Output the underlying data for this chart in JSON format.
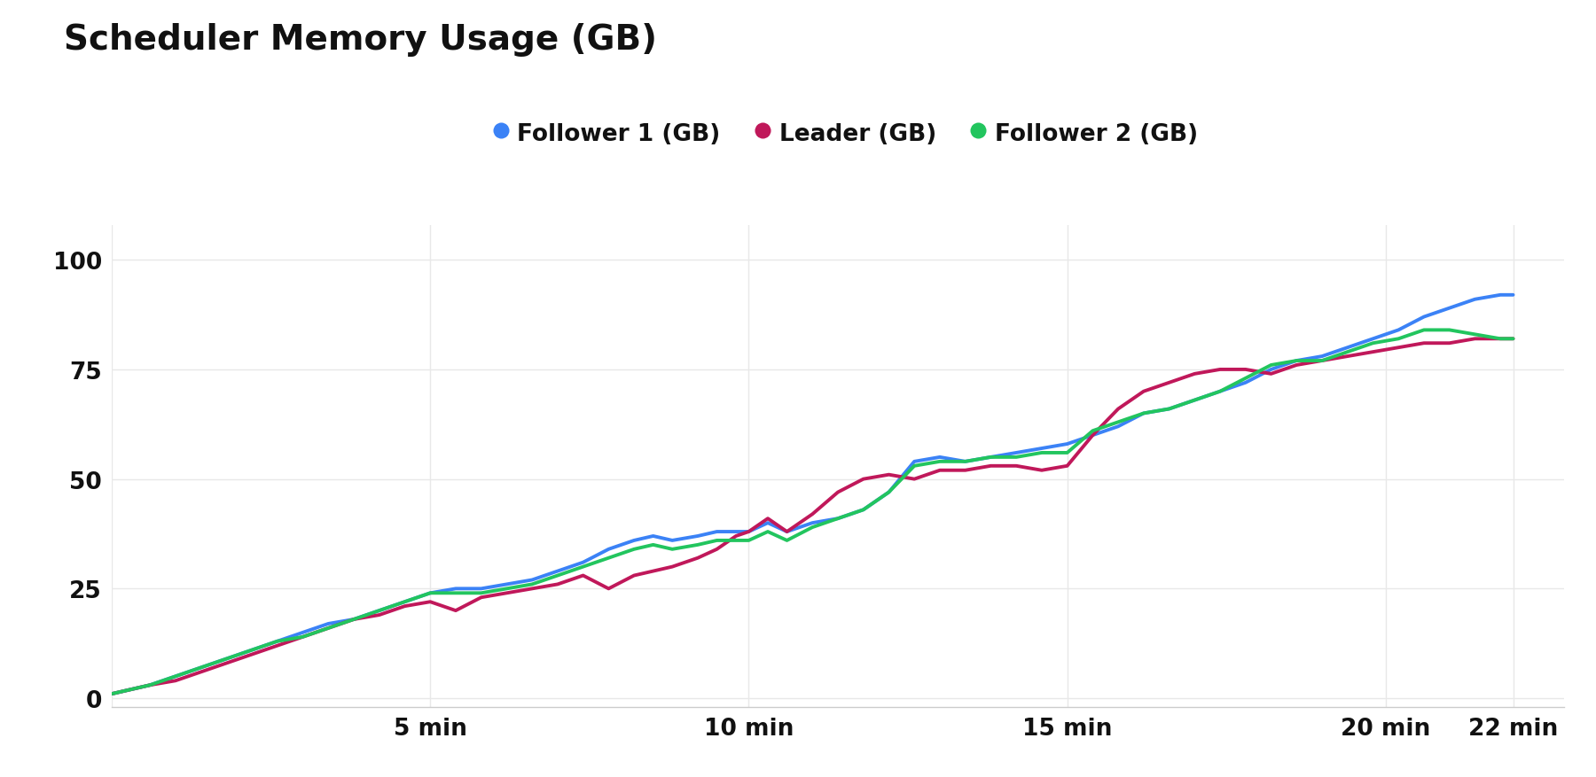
{
  "title": "Scheduler Memory Usage (GB)",
  "background_color": "#ffffff",
  "plot_bg_color": "#ffffff",
  "x_ticks": [
    0,
    5,
    10,
    15,
    20,
    22
  ],
  "x_tick_labels": [
    "",
    "5 min",
    "10 min",
    "15 min",
    "20 min",
    "22 min"
  ],
  "y_ticks": [
    0,
    25,
    50,
    75,
    100
  ],
  "ylim": [
    -2,
    108
  ],
  "xlim": [
    0,
    22.8
  ],
  "grid_color": "#e8e8e8",
  "series": [
    {
      "name": "Follower 1 (GB)",
      "color": "#3b82f6",
      "x": [
        0,
        0.3,
        0.6,
        1.0,
        1.4,
        1.8,
        2.2,
        2.6,
        3.0,
        3.4,
        3.8,
        4.2,
        4.6,
        5.0,
        5.4,
        5.8,
        6.2,
        6.6,
        7.0,
        7.4,
        7.8,
        8.2,
        8.5,
        8.8,
        9.2,
        9.5,
        9.8,
        10.0,
        10.3,
        10.6,
        11.0,
        11.4,
        11.8,
        12.2,
        12.6,
        13.0,
        13.4,
        13.8,
        14.2,
        14.6,
        15.0,
        15.4,
        15.8,
        16.2,
        16.6,
        17.0,
        17.4,
        17.8,
        18.2,
        18.6,
        19.0,
        19.4,
        19.8,
        20.2,
        20.6,
        21.0,
        21.4,
        21.8,
        22.0
      ],
      "y": [
        1,
        2,
        3,
        5,
        7,
        9,
        11,
        13,
        15,
        17,
        18,
        20,
        22,
        24,
        25,
        25,
        26,
        27,
        29,
        31,
        34,
        36,
        37,
        36,
        37,
        38,
        38,
        38,
        40,
        38,
        40,
        41,
        43,
        47,
        54,
        55,
        54,
        55,
        56,
        57,
        58,
        60,
        62,
        65,
        66,
        68,
        70,
        72,
        75,
        77,
        78,
        80,
        82,
        84,
        87,
        89,
        91,
        92,
        92
      ]
    },
    {
      "name": "Leader (GB)",
      "color": "#c0185a",
      "x": [
        0,
        0.3,
        0.6,
        1.0,
        1.4,
        1.8,
        2.2,
        2.6,
        3.0,
        3.4,
        3.8,
        4.2,
        4.6,
        5.0,
        5.4,
        5.8,
        6.2,
        6.6,
        7.0,
        7.4,
        7.8,
        8.2,
        8.5,
        8.8,
        9.2,
        9.5,
        9.8,
        10.0,
        10.3,
        10.6,
        11.0,
        11.4,
        11.8,
        12.2,
        12.6,
        13.0,
        13.4,
        13.8,
        14.2,
        14.6,
        15.0,
        15.4,
        15.8,
        16.2,
        16.6,
        17.0,
        17.4,
        17.8,
        18.2,
        18.6,
        19.0,
        19.4,
        19.8,
        20.2,
        20.6,
        21.0,
        21.4,
        21.8,
        22.0
      ],
      "y": [
        1,
        2,
        3,
        4,
        6,
        8,
        10,
        12,
        14,
        16,
        18,
        19,
        21,
        22,
        20,
        23,
        24,
        25,
        26,
        28,
        25,
        28,
        29,
        30,
        32,
        34,
        37,
        38,
        41,
        38,
        42,
        47,
        50,
        51,
        50,
        52,
        52,
        53,
        53,
        52,
        53,
        60,
        66,
        70,
        72,
        74,
        75,
        75,
        74,
        76,
        77,
        78,
        79,
        80,
        81,
        81,
        82,
        82,
        82
      ]
    },
    {
      "name": "Follower 2 (GB)",
      "color": "#22c55e",
      "x": [
        0,
        0.3,
        0.6,
        1.0,
        1.4,
        1.8,
        2.2,
        2.6,
        3.0,
        3.4,
        3.8,
        4.2,
        4.6,
        5.0,
        5.4,
        5.8,
        6.2,
        6.6,
        7.0,
        7.4,
        7.8,
        8.2,
        8.5,
        8.8,
        9.2,
        9.5,
        9.8,
        10.0,
        10.3,
        10.6,
        11.0,
        11.4,
        11.8,
        12.2,
        12.6,
        13.0,
        13.4,
        13.8,
        14.2,
        14.6,
        15.0,
        15.4,
        15.8,
        16.2,
        16.6,
        17.0,
        17.4,
        17.8,
        18.2,
        18.6,
        19.0,
        19.4,
        19.8,
        20.2,
        20.6,
        21.0,
        21.4,
        21.8,
        22.0
      ],
      "y": [
        1,
        2,
        3,
        5,
        7,
        9,
        11,
        13,
        14,
        16,
        18,
        20,
        22,
        24,
        24,
        24,
        25,
        26,
        28,
        30,
        32,
        34,
        35,
        34,
        35,
        36,
        36,
        36,
        38,
        36,
        39,
        41,
        43,
        47,
        53,
        54,
        54,
        55,
        55,
        56,
        56,
        61,
        63,
        65,
        66,
        68,
        70,
        73,
        76,
        77,
        77,
        79,
        81,
        82,
        84,
        84,
        83,
        82,
        82
      ]
    }
  ],
  "legend_ncol": 3,
  "title_fontsize": 28,
  "tick_fontsize": 19,
  "legend_fontsize": 19,
  "linewidth": 2.8
}
